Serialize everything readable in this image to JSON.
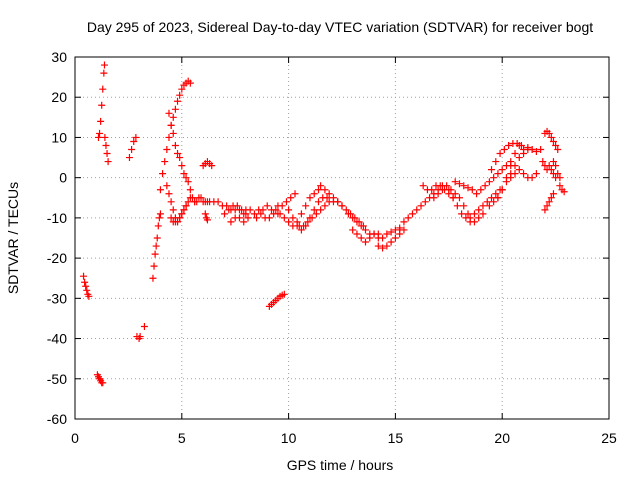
{
  "chart_data": {
    "type": "scatter",
    "title": "Day 295 of 2023, Sidereal Day-to-day VTEC variation (SDTVAR) for receiver bogt",
    "xlabel": "GPS time / hours",
    "ylabel": "SDTVAR / TECUs",
    "xlim": [
      0,
      25
    ],
    "ylim": [
      -60,
      30
    ],
    "xticks": [
      0,
      5,
      10,
      15,
      20,
      25
    ],
    "yticks": [
      -60,
      -50,
      -40,
      -30,
      -20,
      -10,
      0,
      10,
      20,
      30
    ],
    "grid": true,
    "marker": "+",
    "color": "#ff0000",
    "segments": [
      {
        "x": [
          0.4,
          0.45,
          0.5,
          0.55,
          0.6,
          0.65
        ],
        "y": [
          -24.5,
          -26,
          -27,
          -28,
          -29,
          -29.5
        ]
      },
      {
        "x": [
          1.05,
          1.1,
          1.15,
          1.2,
          1.25,
          1.3
        ],
        "y": [
          -49,
          -49.5,
          -50,
          -50.5,
          -51,
          -51
        ]
      },
      {
        "x": [
          1.1,
          1.15,
          1.2,
          1.25,
          1.3,
          1.35,
          1.38
        ],
        "y": [
          10,
          11,
          14,
          18,
          22,
          26,
          28
        ]
      },
      {
        "x": [
          1.4,
          1.45,
          1.5,
          1.55
        ],
        "y": [
          10,
          8,
          6,
          4
        ]
      },
      {
        "x": [
          2.55,
          2.65,
          2.75,
          2.85
        ],
        "y": [
          5,
          7,
          9,
          10
        ]
      },
      {
        "x": [
          2.9,
          3.0,
          3.05
        ],
        "y": [
          -39.5,
          -40,
          -39.5
        ]
      },
      {
        "x": [
          3.25
        ],
        "y": [
          -37
        ]
      },
      {
        "x": [
          3.65,
          3.7,
          3.75,
          3.8,
          3.85,
          3.9,
          3.95,
          4.0
        ],
        "y": [
          -25,
          -22,
          -19,
          -17,
          -15,
          -12,
          -10,
          -9
        ]
      },
      {
        "x": [
          4.0,
          4.1,
          4.2,
          4.3,
          4.4,
          4.5,
          4.6,
          4.7,
          4.8,
          4.9,
          5.0,
          5.1,
          5.2,
          5.3,
          5.4
        ],
        "y": [
          -3,
          1,
          4,
          7,
          10,
          13,
          15,
          17,
          19,
          20.5,
          22,
          23,
          23.5,
          24,
          23.5
        ]
      },
      {
        "x": [
          4.4,
          4.5,
          4.6,
          4.7,
          4.8,
          4.9,
          5.0,
          5.1,
          5.2,
          5.3,
          5.4,
          5.5,
          5.6
        ],
        "y": [
          16,
          13,
          11,
          8,
          6,
          5,
          3,
          1,
          0,
          -1,
          -3,
          -5,
          -6
        ]
      },
      {
        "x": [
          4.3,
          4.4,
          4.5,
          4.6,
          4.7,
          4.8,
          4.9,
          5.0,
          5.1,
          5.2,
          5.3,
          5.4
        ],
        "y": [
          -2,
          -4,
          -6,
          -8,
          -10,
          -11,
          -10,
          -9,
          -8,
          -7,
          -6,
          -5
        ]
      },
      {
        "x": [
          4.5,
          4.6,
          4.7,
          4.8,
          4.9,
          5.0,
          5.1,
          5.2
        ],
        "y": [
          -10,
          -11,
          -11,
          -11,
          -10,
          -9,
          -8,
          -7
        ]
      },
      {
        "x": [
          5.6,
          5.7,
          5.8,
          5.9,
          6.0,
          6.1,
          6.2,
          6.3
        ],
        "y": [
          -6,
          -6,
          -5,
          -5,
          -6,
          -6,
          -6,
          -6
        ]
      },
      {
        "x": [
          6.0,
          6.1,
          6.2,
          6.3,
          6.4
        ],
        "y": [
          3,
          3.5,
          4,
          3.5,
          3
        ]
      },
      {
        "x": [
          6.1,
          6.15,
          6.2
        ],
        "y": [
          -9,
          -10,
          -10.5
        ]
      },
      {
        "x": [
          6.5,
          6.7,
          6.9,
          7.1,
          7.3,
          7.5,
          7.7,
          7.9
        ],
        "y": [
          -6,
          -6,
          -7,
          -7,
          -8,
          -8,
          -8,
          -9
        ]
      },
      {
        "x": [
          7.0,
          7.2,
          7.4,
          7.6,
          7.8,
          8.0
        ],
        "y": [
          -9,
          -8,
          -7,
          -7,
          -8,
          -9
        ]
      },
      {
        "x": [
          7.3,
          7.5,
          7.7,
          7.9,
          8.1
        ],
        "y": [
          -11,
          -10,
          -10,
          -11,
          -10
        ]
      },
      {
        "x": [
          8.0,
          8.2,
          8.4,
          8.6,
          8.8,
          9.0,
          9.2,
          9.4,
          9.6
        ],
        "y": [
          -8,
          -8,
          -9,
          -8,
          -8,
          -7,
          -8,
          -8,
          -9
        ]
      },
      {
        "x": [
          8.5,
          8.7,
          8.9,
          9.1,
          9.3,
          9.5
        ],
        "y": [
          -10,
          -9,
          -10,
          -10,
          -9,
          -9
        ]
      },
      {
        "x": [
          9.5,
          9.7,
          9.9,
          10.1,
          10.3
        ],
        "y": [
          -7,
          -7,
          -6,
          -5,
          -4
        ]
      },
      {
        "x": [
          9.1,
          9.2,
          9.3,
          9.4,
          9.5,
          9.6,
          9.7,
          9.8
        ],
        "y": [
          -32,
          -31.5,
          -31,
          -30.5,
          -30,
          -29.5,
          -29.2,
          -29
        ]
      },
      {
        "x": [
          9.8,
          10.0,
          10.2,
          10.4,
          10.6,
          10.8,
          11.0,
          11.2,
          11.4
        ],
        "y": [
          -10,
          -11,
          -12,
          -11,
          -9,
          -7,
          -5,
          -4,
          -3
        ]
      },
      {
        "x": [
          10.0,
          10.2,
          10.4,
          10.6,
          10.8,
          11.0,
          11.2,
          11.4,
          11.6,
          11.8
        ],
        "y": [
          -8,
          -10,
          -12,
          -13,
          -12,
          -10,
          -8,
          -6,
          -5,
          -5
        ]
      },
      {
        "x": [
          10.5,
          10.7,
          10.9,
          11.1,
          11.3,
          11.5,
          11.7,
          11.9,
          12.1,
          12.3,
          12.5
        ],
        "y": [
          -12,
          -12,
          -11,
          -10,
          -9,
          -8,
          -7,
          -6,
          -6,
          -6,
          -7
        ]
      },
      {
        "x": [
          11.5,
          11.7,
          11.9,
          12.1,
          12.3,
          12.5,
          12.7,
          12.9,
          13.1,
          13.3,
          13.5
        ],
        "y": [
          -2,
          -3,
          -4,
          -5,
          -6,
          -7,
          -8,
          -9,
          -10,
          -11,
          -12
        ]
      },
      {
        "x": [
          12.8,
          13.0,
          13.2,
          13.4,
          13.6,
          13.8,
          14.0,
          14.2
        ],
        "y": [
          -9,
          -10,
          -11,
          -12,
          -13,
          -14,
          -14,
          -15
        ]
      },
      {
        "x": [
          13.0,
          13.2,
          13.4,
          13.6,
          13.8,
          14.0,
          14.2,
          14.4
        ],
        "y": [
          -13,
          -14,
          -15,
          -16,
          -15,
          -14,
          -14,
          -15
        ]
      },
      {
        "x": [
          14.2,
          14.4,
          14.6,
          14.8,
          15.0,
          15.2,
          15.4
        ],
        "y": [
          -17,
          -17.5,
          -17,
          -16,
          -15,
          -14,
          -13
        ]
      },
      {
        "x": [
          14.6,
          14.8,
          15.0,
          15.2
        ],
        "y": [
          -14,
          -13.5,
          -13,
          -12.5
        ]
      },
      {
        "x": [
          15.2,
          15.4,
          15.6,
          15.8,
          16.0,
          16.2,
          16.4,
          16.6,
          16.8,
          17.0,
          17.2
        ],
        "y": [
          -13,
          -11,
          -10,
          -9,
          -8,
          -7,
          -6,
          -5,
          -4,
          -3,
          -2
        ]
      },
      {
        "x": [
          16.3,
          16.5,
          16.7,
          16.9,
          17.1,
          17.3,
          17.5,
          17.7
        ],
        "y": [
          -2,
          -3,
          -3,
          -2,
          -2,
          -3,
          -4,
          -5
        ]
      },
      {
        "x": [
          16.8,
          17.0,
          17.2,
          17.4,
          17.6,
          17.8,
          18.0,
          18.2,
          18.4
        ],
        "y": [
          -5,
          -4,
          -3,
          -2,
          -3,
          -4,
          -5,
          -7,
          -9
        ]
      },
      {
        "x": [
          17.5,
          17.7,
          17.9,
          18.1,
          18.3,
          18.5,
          18.7,
          18.9,
          19.1
        ],
        "y": [
          -3,
          -5,
          -7,
          -9,
          -10,
          -11,
          -11,
          -10,
          -9
        ]
      },
      {
        "x": [
          17.8,
          18.0,
          18.2,
          18.4,
          18.6
        ],
        "y": [
          -1,
          -1.5,
          -2,
          -2.5,
          -3
        ]
      },
      {
        "x": [
          18.5,
          18.7,
          18.9,
          19.1,
          19.3,
          19.5,
          19.7,
          19.9
        ],
        "y": [
          -10,
          -9,
          -8,
          -7,
          -6,
          -5,
          -4,
          -3
        ]
      },
      {
        "x": [
          18.8,
          19.0,
          19.2,
          19.4,
          19.6,
          19.8,
          20.0,
          20.2,
          20.4
        ],
        "y": [
          -4,
          -3,
          -2,
          -1,
          0,
          1,
          2,
          3,
          4
        ]
      },
      {
        "x": [
          19.4,
          19.6,
          19.8,
          20.0,
          20.2,
          20.4,
          20.6,
          20.8
        ],
        "y": [
          -7,
          -6,
          -5,
          -3,
          0,
          3,
          6,
          8
        ]
      },
      {
        "x": [
          19.5,
          19.7,
          19.9,
          20.1,
          20.3,
          20.5,
          20.7,
          20.9
        ],
        "y": [
          2,
          4,
          6,
          7,
          8,
          8.5,
          8.5,
          8
        ]
      },
      {
        "x": [
          19.8,
          20.0,
          20.2,
          20.4,
          20.6,
          20.8,
          21.0,
          21.2,
          21.4
        ],
        "y": [
          -5,
          -3,
          -1,
          1,
          3,
          5,
          6,
          7,
          7
        ]
      },
      {
        "x": [
          20.4,
          20.6,
          20.8,
          21.0,
          21.2,
          21.4,
          21.6
        ],
        "y": [
          0,
          1,
          2,
          1,
          0,
          0,
          1
        ]
      },
      {
        "x": [
          21.0,
          21.2,
          21.4,
          21.6,
          21.8
        ],
        "y": [
          7,
          7.5,
          7,
          6.5,
          7
        ]
      },
      {
        "x": [
          22.0,
          22.1,
          22.2,
          22.3,
          22.4,
          22.5,
          22.6
        ],
        "y": [
          11,
          11.5,
          11,
          10,
          9,
          8,
          7
        ]
      },
      {
        "x": [
          21.9,
          22.0,
          22.1,
          22.2,
          22.3,
          22.4,
          22.5
        ],
        "y": [
          4,
          3,
          2,
          3,
          2,
          1,
          0
        ]
      },
      {
        "x": [
          22.4,
          22.5,
          22.6,
          22.7
        ],
        "y": [
          4,
          3,
          1,
          0
        ]
      },
      {
        "x": [
          22.0,
          22.1,
          22.2,
          22.3,
          22.4
        ],
        "y": [
          -8,
          -7,
          -6,
          -5,
          -4
        ]
      },
      {
        "x": [
          22.7,
          22.8,
          22.9
        ],
        "y": [
          -2,
          -3,
          -3.5
        ]
      }
    ]
  }
}
